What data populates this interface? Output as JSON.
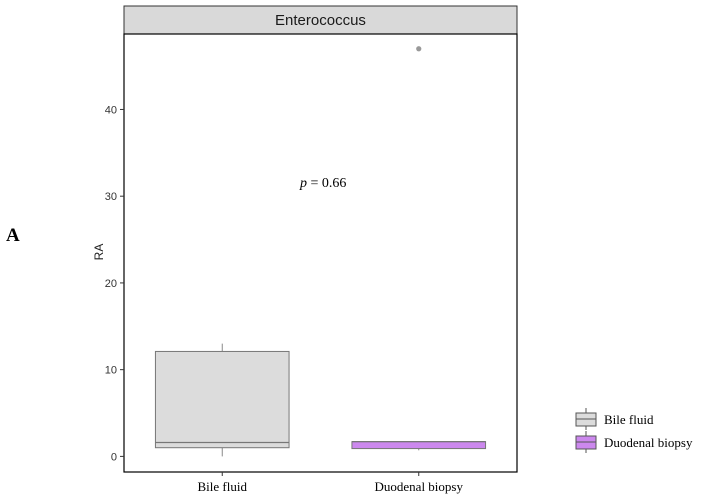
{
  "panel_letter": "A",
  "chart_data": {
    "type": "box",
    "title": "Enterococcus",
    "xlabel": "",
    "ylabel": "RA",
    "ylim": [
      -1.8,
      48.7
    ],
    "yticks": [
      0,
      10,
      20,
      30,
      40
    ],
    "categories": [
      "Bile fluid",
      "Duodenal biopsy"
    ],
    "boxes": [
      {
        "category": "Bile fluid",
        "min": 0,
        "q1": 1.0,
        "median": 1.6,
        "q3": 12.1,
        "max": 13.0,
        "outliers": [],
        "color": "#dcdcdc"
      },
      {
        "category": "Duodenal biopsy",
        "min": 0.7,
        "q1": 0.9,
        "median": 1.7,
        "q3": 1.7,
        "max": 1.7,
        "outliers": [
          47.0
        ],
        "color": "#cc88ee"
      }
    ],
    "annotation": {
      "italic": "p",
      "text": " = 0.66"
    },
    "legend": {
      "position": "right",
      "entries": [
        {
          "label": "Bile fluid",
          "color": "#dcdcdc"
        },
        {
          "label": "Duodenal biopsy",
          "color": "#cc88ee"
        }
      ]
    },
    "grid": false
  }
}
